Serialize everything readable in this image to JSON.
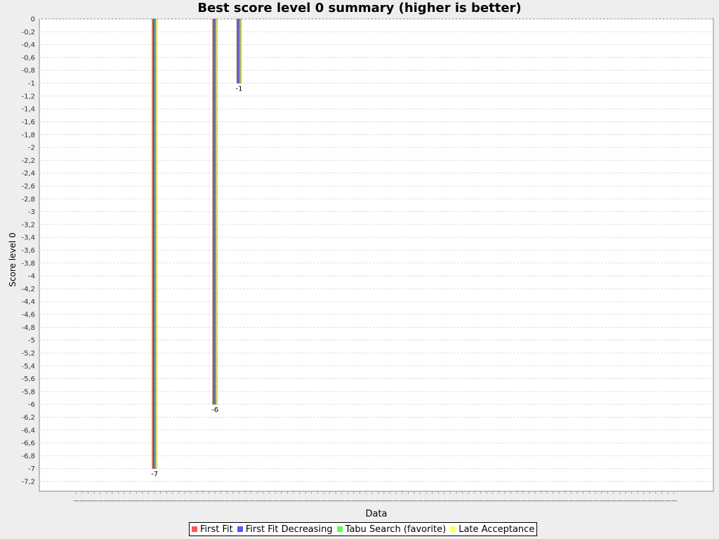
{
  "chart_data": {
    "type": "bar",
    "title": "Best score level 0 summary (higher is better)",
    "xlabel": "Data",
    "ylabel": "Score level 0",
    "ylim": [
      -7.2,
      0
    ],
    "ytick_step": 0.2,
    "grid": true,
    "legend_position": "bottom",
    "category_count": 100,
    "series": [
      {
        "name": "First Fit",
        "color": "#ff5555",
        "points": [
          {
            "index": 13,
            "value": -7
          },
          {
            "index": 23,
            "value": -6
          },
          {
            "index": 27,
            "value": -1
          }
        ]
      },
      {
        "name": "First Fit Decreasing",
        "color": "#5555ff",
        "points": [
          {
            "index": 13,
            "value": -7
          },
          {
            "index": 23,
            "value": -6
          },
          {
            "index": 27,
            "value": -1
          }
        ]
      },
      {
        "name": "Tabu Search (favorite)",
        "color": "#55ff55",
        "points": [
          {
            "index": 13,
            "value": -7
          },
          {
            "index": 23,
            "value": -6
          },
          {
            "index": 27,
            "value": -1
          }
        ]
      },
      {
        "name": "Late Acceptance",
        "color": "#ffff55",
        "points": [
          {
            "index": 13,
            "value": -7
          },
          {
            "index": 23,
            "value": -6
          },
          {
            "index": 27,
            "value": -1
          }
        ]
      }
    ],
    "data_labels": [
      {
        "index": 13,
        "text": "-7"
      },
      {
        "index": 23,
        "text": "-6"
      },
      {
        "index": 27,
        "text": "-1"
      }
    ]
  }
}
